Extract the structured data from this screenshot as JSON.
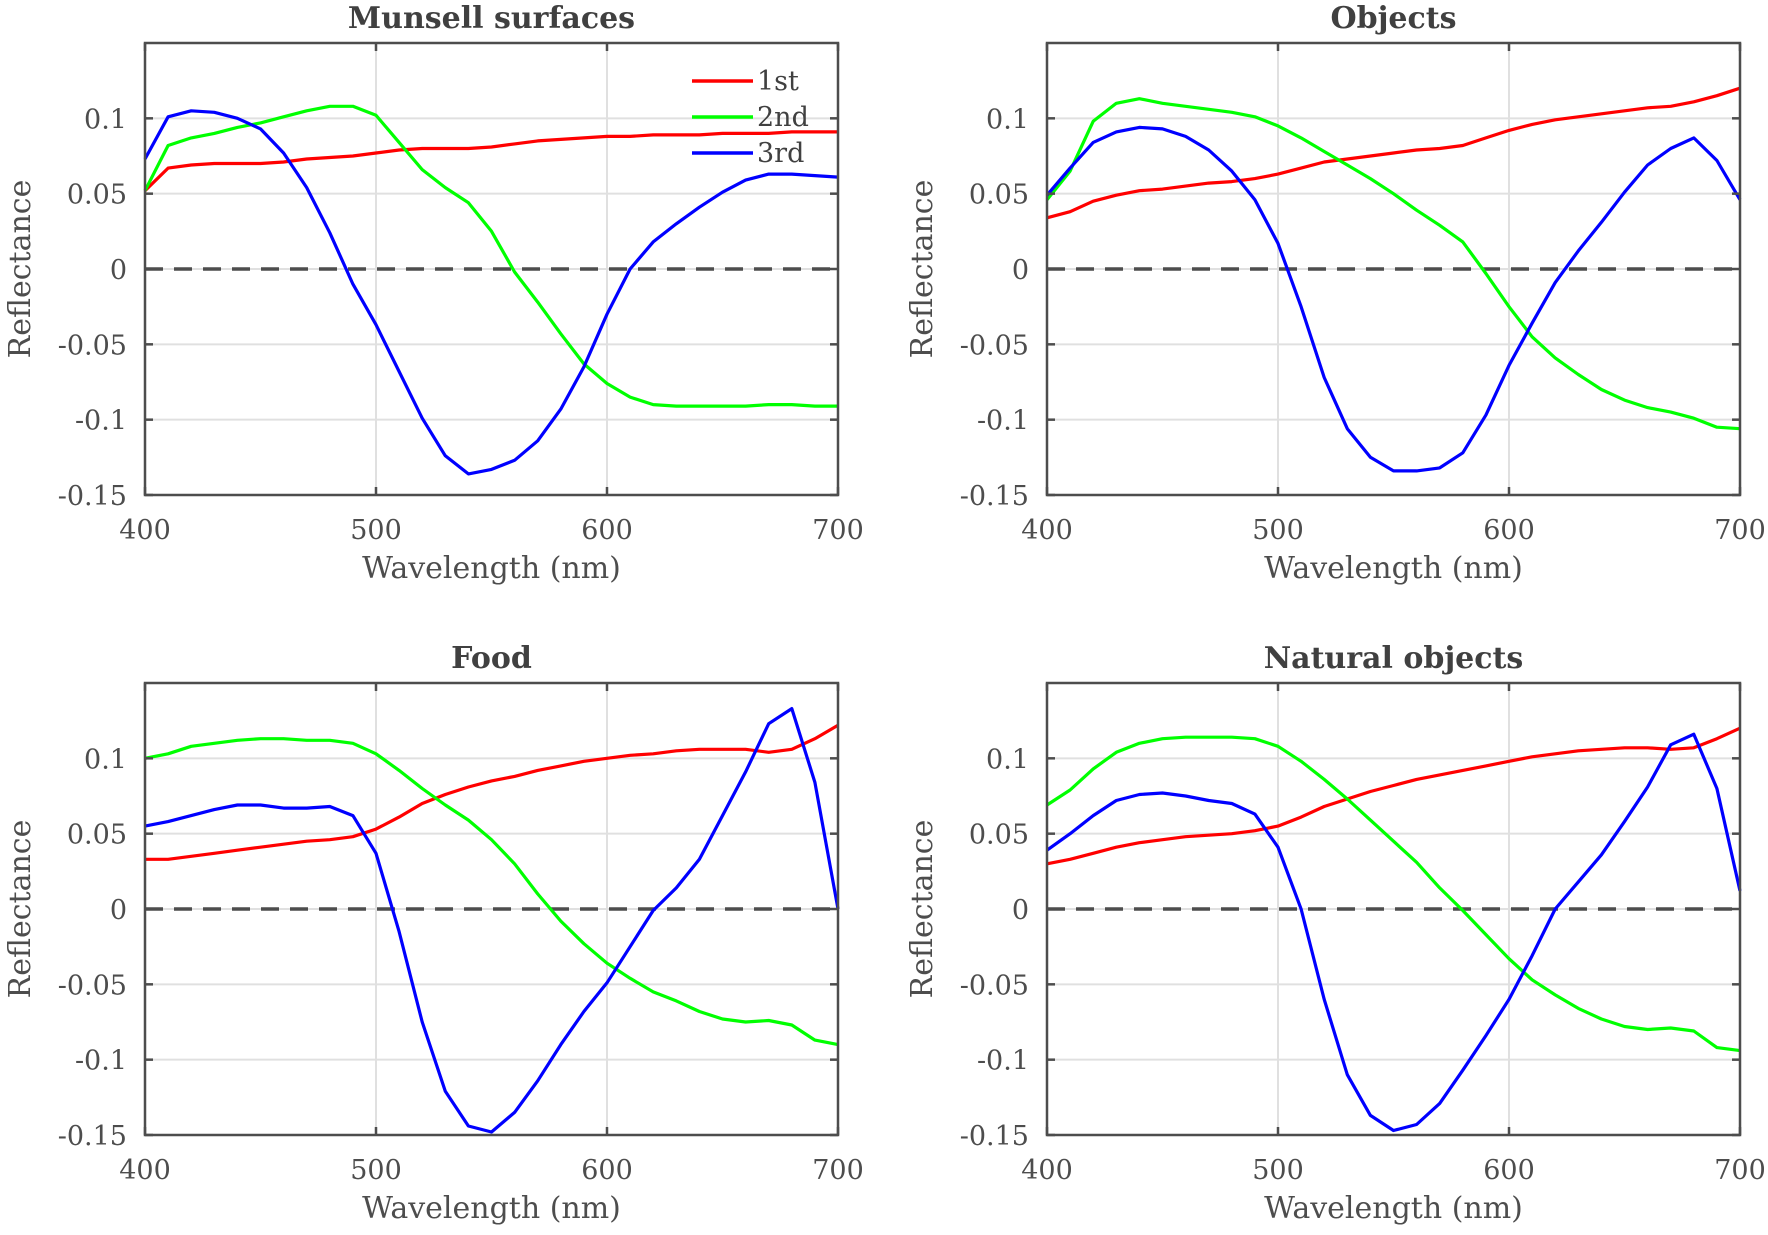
{
  "chart_data": [
    {
      "type": "line",
      "title": "Munsell surfaces",
      "xlabel": "Wavelength (nm)",
      "ylabel": "Reflectance",
      "xlim": [
        400,
        700
      ],
      "ylim": [
        -0.15,
        0.15
      ],
      "xticks": [
        "400",
        "500",
        "600",
        "700"
      ],
      "yticks": [
        "-0.15",
        "-0.1",
        "-0.05",
        "0",
        "0.05",
        "0.1"
      ],
      "grid": true,
      "zero_line": "dashed",
      "legend": "top-right",
      "x": [
        400,
        410,
        420,
        430,
        440,
        450,
        460,
        470,
        480,
        490,
        500,
        510,
        520,
        530,
        540,
        550,
        560,
        570,
        580,
        590,
        600,
        610,
        620,
        630,
        640,
        650,
        660,
        670,
        680,
        690,
        700
      ],
      "series": [
        {
          "name": "1st",
          "color": "#ff0000",
          "values": [
            0.052,
            0.067,
            0.069,
            0.07,
            0.07,
            0.07,
            0.071,
            0.073,
            0.074,
            0.075,
            0.077,
            0.079,
            0.08,
            0.08,
            0.08,
            0.081,
            0.083,
            0.085,
            0.086,
            0.087,
            0.088,
            0.088,
            0.089,
            0.089,
            0.089,
            0.09,
            0.09,
            0.09,
            0.091,
            0.091,
            0.091
          ]
        },
        {
          "name": "2nd",
          "color": "#00ff00",
          "values": [
            0.052,
            0.082,
            0.087,
            0.09,
            0.094,
            0.097,
            0.101,
            0.105,
            0.108,
            0.108,
            0.102,
            0.084,
            0.066,
            0.054,
            0.044,
            0.025,
            -0.002,
            -0.022,
            -0.043,
            -0.063,
            -0.076,
            -0.085,
            -0.09,
            -0.091,
            -0.091,
            -0.091,
            -0.091,
            -0.09,
            -0.09,
            -0.091,
            -0.091
          ]
        },
        {
          "name": "3rd",
          "color": "#0000ff",
          "values": [
            0.073,
            0.101,
            0.105,
            0.104,
            0.1,
            0.093,
            0.077,
            0.054,
            0.024,
            -0.01,
            -0.037,
            -0.068,
            -0.099,
            -0.124,
            -0.136,
            -0.133,
            -0.127,
            -0.114,
            -0.093,
            -0.065,
            -0.03,
            0.0,
            0.018,
            0.03,
            0.041,
            0.051,
            0.059,
            0.063,
            0.063,
            0.062,
            0.061
          ]
        }
      ]
    },
    {
      "type": "line",
      "title": "Objects",
      "xlabel": "Wavelength (nm)",
      "ylabel": "Reflectance",
      "xlim": [
        400,
        700
      ],
      "ylim": [
        -0.15,
        0.15
      ],
      "xticks": [
        "400",
        "500",
        "600",
        "700"
      ],
      "yticks": [
        "-0.15",
        "-0.1",
        "-0.05",
        "0",
        "0.05",
        "0.1"
      ],
      "grid": true,
      "zero_line": "dashed",
      "x": [
        400,
        410,
        420,
        430,
        440,
        450,
        460,
        470,
        480,
        490,
        500,
        510,
        520,
        530,
        540,
        550,
        560,
        570,
        580,
        590,
        600,
        610,
        620,
        630,
        640,
        650,
        660,
        670,
        680,
        690,
        700
      ],
      "series": [
        {
          "color": "#ff0000",
          "values": [
            0.034,
            0.038,
            0.045,
            0.049,
            0.052,
            0.053,
            0.055,
            0.057,
            0.058,
            0.06,
            0.063,
            0.067,
            0.071,
            0.073,
            0.075,
            0.077,
            0.079,
            0.08,
            0.082,
            0.087,
            0.092,
            0.096,
            0.099,
            0.101,
            0.103,
            0.105,
            0.107,
            0.108,
            0.111,
            0.115,
            0.12
          ]
        },
        {
          "color": "#00ff00",
          "values": [
            0.046,
            0.065,
            0.098,
            0.11,
            0.113,
            0.11,
            0.108,
            0.106,
            0.104,
            0.101,
            0.095,
            0.087,
            0.078,
            0.069,
            0.06,
            0.05,
            0.039,
            0.029,
            0.018,
            -0.003,
            -0.025,
            -0.045,
            -0.059,
            -0.07,
            -0.08,
            -0.087,
            -0.092,
            -0.095,
            -0.099,
            -0.105,
            -0.106
          ]
        },
        {
          "color": "#0000ff",
          "values": [
            0.049,
            0.067,
            0.084,
            0.091,
            0.094,
            0.093,
            0.088,
            0.079,
            0.065,
            0.046,
            0.017,
            -0.025,
            -0.072,
            -0.106,
            -0.125,
            -0.134,
            -0.134,
            -0.132,
            -0.122,
            -0.097,
            -0.064,
            -0.036,
            -0.009,
            0.012,
            0.031,
            0.051,
            0.069,
            0.08,
            0.087,
            0.072,
            0.046
          ]
        }
      ]
    },
    {
      "type": "line",
      "title": "Food",
      "xlabel": "Wavelength (nm)",
      "ylabel": "Reflectance",
      "xlim": [
        400,
        700
      ],
      "ylim": [
        -0.15,
        0.15
      ],
      "xticks": [
        "400",
        "500",
        "600",
        "700"
      ],
      "yticks": [
        "-0.15",
        "-0.1",
        "-0.05",
        "0",
        "0.05",
        "0.1"
      ],
      "grid": true,
      "zero_line": "dashed",
      "x": [
        400,
        410,
        420,
        430,
        440,
        450,
        460,
        470,
        480,
        490,
        500,
        510,
        520,
        530,
        540,
        550,
        560,
        570,
        580,
        590,
        600,
        610,
        620,
        630,
        640,
        650,
        660,
        670,
        680,
        690,
        700
      ],
      "series": [
        {
          "color": "#ff0000",
          "values": [
            0.033,
            0.033,
            0.035,
            0.037,
            0.039,
            0.041,
            0.043,
            0.045,
            0.046,
            0.048,
            0.053,
            0.061,
            0.07,
            0.076,
            0.081,
            0.085,
            0.088,
            0.092,
            0.095,
            0.098,
            0.1,
            0.102,
            0.103,
            0.105,
            0.106,
            0.106,
            0.106,
            0.104,
            0.106,
            0.113,
            0.122
          ]
        },
        {
          "color": "#00ff00",
          "values": [
            0.1,
            0.103,
            0.108,
            0.11,
            0.112,
            0.113,
            0.113,
            0.112,
            0.112,
            0.11,
            0.103,
            0.092,
            0.08,
            0.069,
            0.059,
            0.046,
            0.03,
            0.01,
            -0.008,
            -0.023,
            -0.036,
            -0.046,
            -0.055,
            -0.061,
            -0.068,
            -0.073,
            -0.075,
            -0.074,
            -0.077,
            -0.087,
            -0.09
          ]
        },
        {
          "color": "#0000ff",
          "values": [
            0.055,
            0.058,
            0.062,
            0.066,
            0.069,
            0.069,
            0.067,
            0.067,
            0.068,
            0.062,
            0.037,
            -0.015,
            -0.075,
            -0.121,
            -0.144,
            -0.148,
            -0.135,
            -0.114,
            -0.09,
            -0.068,
            -0.049,
            -0.025,
            -0.001,
            0.014,
            0.033,
            0.062,
            0.091,
            0.123,
            0.133,
            0.084,
            0.0
          ]
        }
      ]
    },
    {
      "type": "line",
      "title": "Natural objects",
      "xlabel": "Wavelength (nm)",
      "ylabel": "Reflectance",
      "xlim": [
        400,
        700
      ],
      "ylim": [
        -0.15,
        0.15
      ],
      "xticks": [
        "400",
        "500",
        "600",
        "700"
      ],
      "yticks": [
        "-0.15",
        "-0.1",
        "-0.05",
        "0",
        "0.05",
        "0.1"
      ],
      "grid": true,
      "zero_line": "dashed",
      "x": [
        400,
        410,
        420,
        430,
        440,
        450,
        460,
        470,
        480,
        490,
        500,
        510,
        520,
        530,
        540,
        550,
        560,
        570,
        580,
        590,
        600,
        610,
        620,
        630,
        640,
        650,
        660,
        670,
        680,
        690,
        700
      ],
      "series": [
        {
          "color": "#ff0000",
          "values": [
            0.03,
            0.033,
            0.037,
            0.041,
            0.044,
            0.046,
            0.048,
            0.049,
            0.05,
            0.052,
            0.055,
            0.061,
            0.068,
            0.073,
            0.078,
            0.082,
            0.086,
            0.089,
            0.092,
            0.095,
            0.098,
            0.101,
            0.103,
            0.105,
            0.106,
            0.107,
            0.107,
            0.106,
            0.107,
            0.113,
            0.12
          ]
        },
        {
          "color": "#00ff00",
          "values": [
            0.069,
            0.079,
            0.093,
            0.104,
            0.11,
            0.113,
            0.114,
            0.114,
            0.114,
            0.113,
            0.108,
            0.098,
            0.086,
            0.073,
            0.059,
            0.045,
            0.031,
            0.014,
            -0.001,
            -0.017,
            -0.033,
            -0.047,
            -0.057,
            -0.066,
            -0.073,
            -0.078,
            -0.08,
            -0.079,
            -0.081,
            -0.092,
            -0.094
          ]
        },
        {
          "color": "#0000ff",
          "values": [
            0.039,
            0.05,
            0.062,
            0.072,
            0.076,
            0.077,
            0.075,
            0.072,
            0.07,
            0.063,
            0.041,
            0.0,
            -0.06,
            -0.11,
            -0.137,
            -0.147,
            -0.143,
            -0.129,
            -0.107,
            -0.084,
            -0.06,
            -0.031,
            0.0,
            0.018,
            0.036,
            0.058,
            0.081,
            0.109,
            0.116,
            0.08,
            0.012
          ]
        }
      ]
    }
  ]
}
